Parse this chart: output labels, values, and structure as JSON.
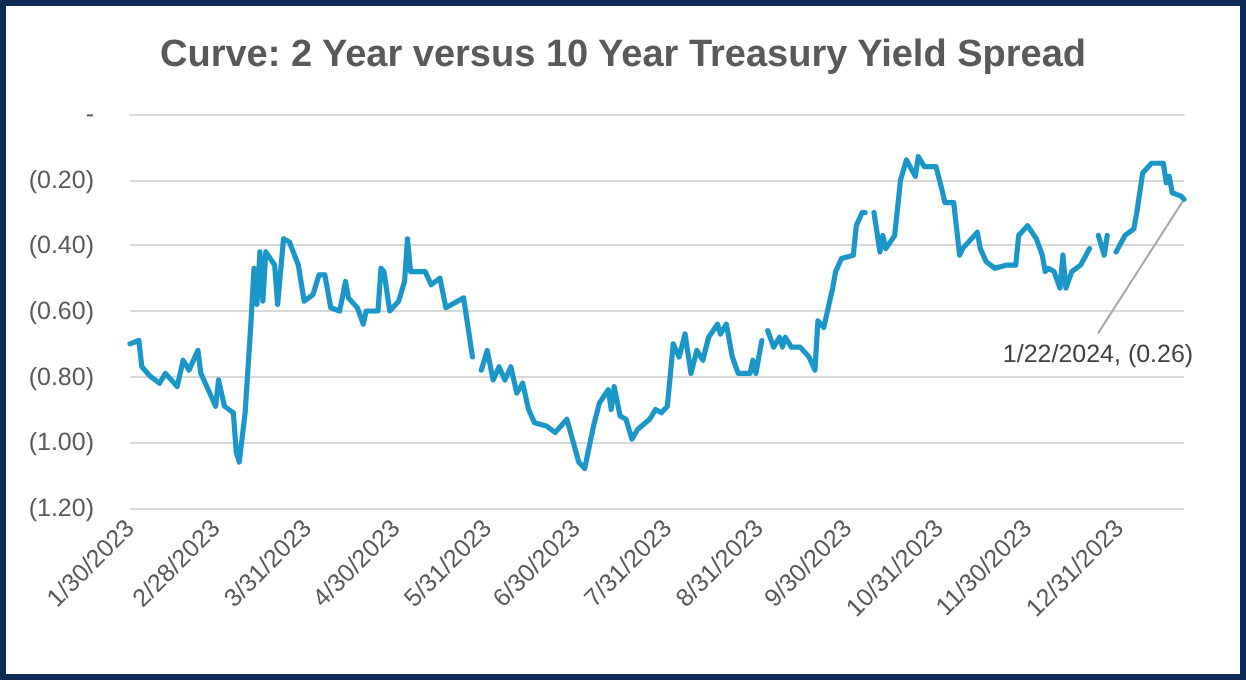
{
  "chart_data": {
    "type": "line",
    "title": "Curve: 2 Year versus 10 Year Treasury Yield Spread",
    "x": [
      "2023-01-30",
      "2023-02-02",
      "2023-02-03",
      "2023-02-06",
      "2023-02-09",
      "2023-02-11",
      "2023-02-15",
      "2023-02-17",
      "2023-02-19",
      "2023-02-22",
      "2023-02-23",
      "2023-02-25",
      "2023-02-28",
      "2023-03-01",
      "2023-03-03",
      "2023-03-06",
      "2023-03-07",
      "2023-03-08",
      "2023-03-10",
      "2023-03-12",
      "2023-03-13",
      "2023-03-14",
      "2023-03-15",
      "2023-03-16",
      "2023-03-17",
      "2023-03-20",
      "2023-03-21",
      "2023-03-23",
      "2023-03-25",
      "2023-03-28",
      "2023-03-30",
      "2023-04-02",
      "2023-04-04",
      "2023-04-06",
      "2023-04-08",
      "2023-04-11",
      "2023-04-13",
      "2023-04-14",
      "2023-04-17",
      "2023-04-19",
      "2023-04-20",
      "2023-04-24",
      "2023-04-25",
      "2023-04-26",
      "2023-04-28",
      "2023-05-01",
      "2023-05-03",
      "2023-05-04",
      "2023-05-05",
      "2023-05-10",
      "2023-05-12",
      "2023-05-15",
      "2023-05-17",
      "2023-05-23",
      "2023-05-26",
      "2023-05-28",
      "2023-05-29",
      "2023-05-31",
      "2023-06-02",
      "2023-06-04",
      "2023-06-06",
      "2023-06-08",
      "2023-06-10",
      "2023-06-12",
      "2023-06-14",
      "2023-06-16",
      "2023-06-20",
      "2023-06-23",
      "2023-06-27",
      "2023-07-01",
      "2023-07-03",
      "2023-07-06",
      "2023-07-08",
      "2023-07-11",
      "2023-07-12",
      "2023-07-13",
      "2023-07-15",
      "2023-07-17",
      "2023-07-19",
      "2023-07-21",
      "2023-07-25",
      "2023-07-27",
      "2023-07-29",
      "2023-07-31",
      "2023-08-02",
      "2023-08-04",
      "2023-08-06",
      "2023-08-08",
      "2023-08-10",
      "2023-08-12",
      "2023-08-14",
      "2023-08-17",
      "2023-08-18",
      "2023-08-20",
      "2023-08-22",
      "2023-08-24",
      "2023-08-28",
      "2023-08-29",
      "2023-08-30",
      "2023-09-01",
      "2023-09-02",
      "2023-09-03",
      "2023-09-05",
      "2023-09-07",
      "2023-09-08",
      "2023-09-09",
      "2023-09-11",
      "2023-09-14",
      "2023-09-17",
      "2023-09-19",
      "2023-09-20",
      "2023-09-22",
      "2023-09-25",
      "2023-09-26",
      "2023-09-28",
      "2023-10-02",
      "2023-10-03",
      "2023-10-05",
      "2023-10-06",
      "2023-10-07",
      "2023-10-09",
      "2023-10-11",
      "2023-10-12",
      "2023-10-13",
      "2023-10-16",
      "2023-10-18",
      "2023-10-20",
      "2023-10-23",
      "2023-10-24",
      "2023-10-26",
      "2023-10-30",
      "2023-11-01",
      "2023-11-02",
      "2023-11-05",
      "2023-11-07",
      "2023-11-08",
      "2023-11-13",
      "2023-11-14",
      "2023-11-16",
      "2023-11-19",
      "2023-11-23",
      "2023-11-26",
      "2023-11-27",
      "2023-11-30",
      "2023-12-03",
      "2023-12-05",
      "2023-12-06",
      "2023-12-07",
      "2023-12-09",
      "2023-12-11",
      "2023-12-12",
      "2023-12-13",
      "2023-12-15",
      "2023-12-18",
      "2023-12-21",
      "2023-12-23",
      "2023-12-24",
      "2023-12-26",
      "2023-12-27",
      "2023-12-28",
      "2023-12-30",
      "2024-01-02",
      "2024-01-05",
      "2024-01-06",
      "2024-01-08",
      "2024-01-11",
      "2024-01-15",
      "2024-01-16",
      "2024-01-17",
      "2024-01-18",
      "2024-01-21",
      "2024-01-22"
    ],
    "series": [
      {
        "color": "#1a96c8",
        "values": [
          -0.7,
          -0.69,
          -0.77,
          -0.8,
          -0.82,
          -0.79,
          -0.83,
          -0.75,
          -0.78,
          -0.72,
          -0.79,
          -0.83,
          -0.89,
          -0.81,
          -0.89,
          -0.91,
          -1.03,
          -1.06,
          -0.91,
          -0.63,
          -0.47,
          -0.58,
          -0.42,
          -0.57,
          -0.42,
          -0.46,
          -0.58,
          -0.38,
          -0.39,
          -0.46,
          -0.57,
          -0.55,
          -0.49,
          -0.49,
          -0.59,
          -0.6,
          -0.51,
          -0.56,
          -0.59,
          -0.64,
          -0.6,
          -0.6,
          -0.47,
          -0.48,
          -0.6,
          -0.57,
          -0.51,
          -0.38,
          -0.48,
          -0.48,
          -0.52,
          -0.5,
          -0.59,
          -0.56,
          -0.74,
          null,
          -0.78,
          -0.72,
          -0.81,
          -0.77,
          -0.81,
          -0.77,
          -0.85,
          -0.82,
          -0.9,
          -0.94,
          -0.95,
          -0.97,
          -0.93,
          -1.06,
          -1.08,
          -0.95,
          -0.88,
          -0.84,
          -0.9,
          -0.83,
          -0.92,
          -0.93,
          -0.99,
          -0.96,
          -0.93,
          -0.9,
          -0.91,
          -0.89,
          -0.7,
          -0.74,
          -0.67,
          -0.79,
          -0.72,
          -0.75,
          -0.68,
          -0.64,
          -0.67,
          -0.64,
          -0.74,
          -0.79,
          -0.79,
          -0.75,
          -0.79,
          -0.69,
          null,
          -0.66,
          -0.71,
          -0.68,
          -0.71,
          -0.68,
          -0.71,
          -0.71,
          -0.74,
          -0.78,
          -0.63,
          -0.65,
          -0.53,
          -0.48,
          -0.44,
          -0.43,
          -0.34,
          -0.3,
          -0.3,
          null,
          -0.3,
          -0.42,
          -0.37,
          -0.41,
          -0.37,
          -0.2,
          -0.14,
          -0.19,
          -0.13,
          -0.16,
          -0.16,
          -0.23,
          -0.27,
          -0.27,
          -0.43,
          -0.41,
          -0.36,
          -0.41,
          -0.45,
          -0.47,
          -0.46,
          -0.46,
          -0.37,
          -0.34,
          -0.38,
          -0.43,
          -0.48,
          -0.47,
          -0.48,
          -0.53,
          -0.43,
          -0.53,
          -0.48,
          -0.46,
          -0.41,
          null,
          -0.37,
          -0.43,
          -0.37,
          null,
          -0.42,
          -0.37,
          -0.35,
          -0.3,
          -0.18,
          -0.15,
          -0.15,
          -0.21,
          -0.19,
          -0.24,
          -0.25,
          -0.26
        ]
      }
    ],
    "xlim": [
      "2023-01-30",
      "2024-01-22"
    ],
    "xticks": [
      {
        "value": "2023-01-30",
        "label": "1/30/2023"
      },
      {
        "value": "2023-02-28",
        "label": "2/28/2023"
      },
      {
        "value": "2023-03-31",
        "label": "3/31/2023"
      },
      {
        "value": "2023-04-30",
        "label": "4/30/2023"
      },
      {
        "value": "2023-05-31",
        "label": "5/31/2023"
      },
      {
        "value": "2023-06-30",
        "label": "6/30/2023"
      },
      {
        "value": "2023-07-31",
        "label": "7/31/2023"
      },
      {
        "value": "2023-08-31",
        "label": "8/31/2023"
      },
      {
        "value": "2023-09-30",
        "label": "9/30/2023"
      },
      {
        "value": "2023-10-31",
        "label": "10/31/2023"
      },
      {
        "value": "2023-11-30",
        "label": "11/30/2023"
      },
      {
        "value": "2023-12-31",
        "label": "12/31/2023"
      }
    ],
    "ylim": [
      -1.2,
      0
    ],
    "yticks": [
      {
        "value": 0,
        "label": "-"
      },
      {
        "value": -0.2,
        "label": "(0.20)"
      },
      {
        "value": -0.4,
        "label": "(0.40)"
      },
      {
        "value": -0.6,
        "label": "(0.60)"
      },
      {
        "value": -0.8,
        "label": "(0.80)"
      },
      {
        "value": -1.0,
        "label": "(1.00)"
      },
      {
        "value": -1.2,
        "label": "(1.20)"
      }
    ],
    "grid": "y",
    "marker": "none",
    "line_style": "solid",
    "annotations": [
      {
        "text": "1/22/2024, (0.26)",
        "x": "2024-01-22",
        "y": -0.26
      }
    ]
  }
}
